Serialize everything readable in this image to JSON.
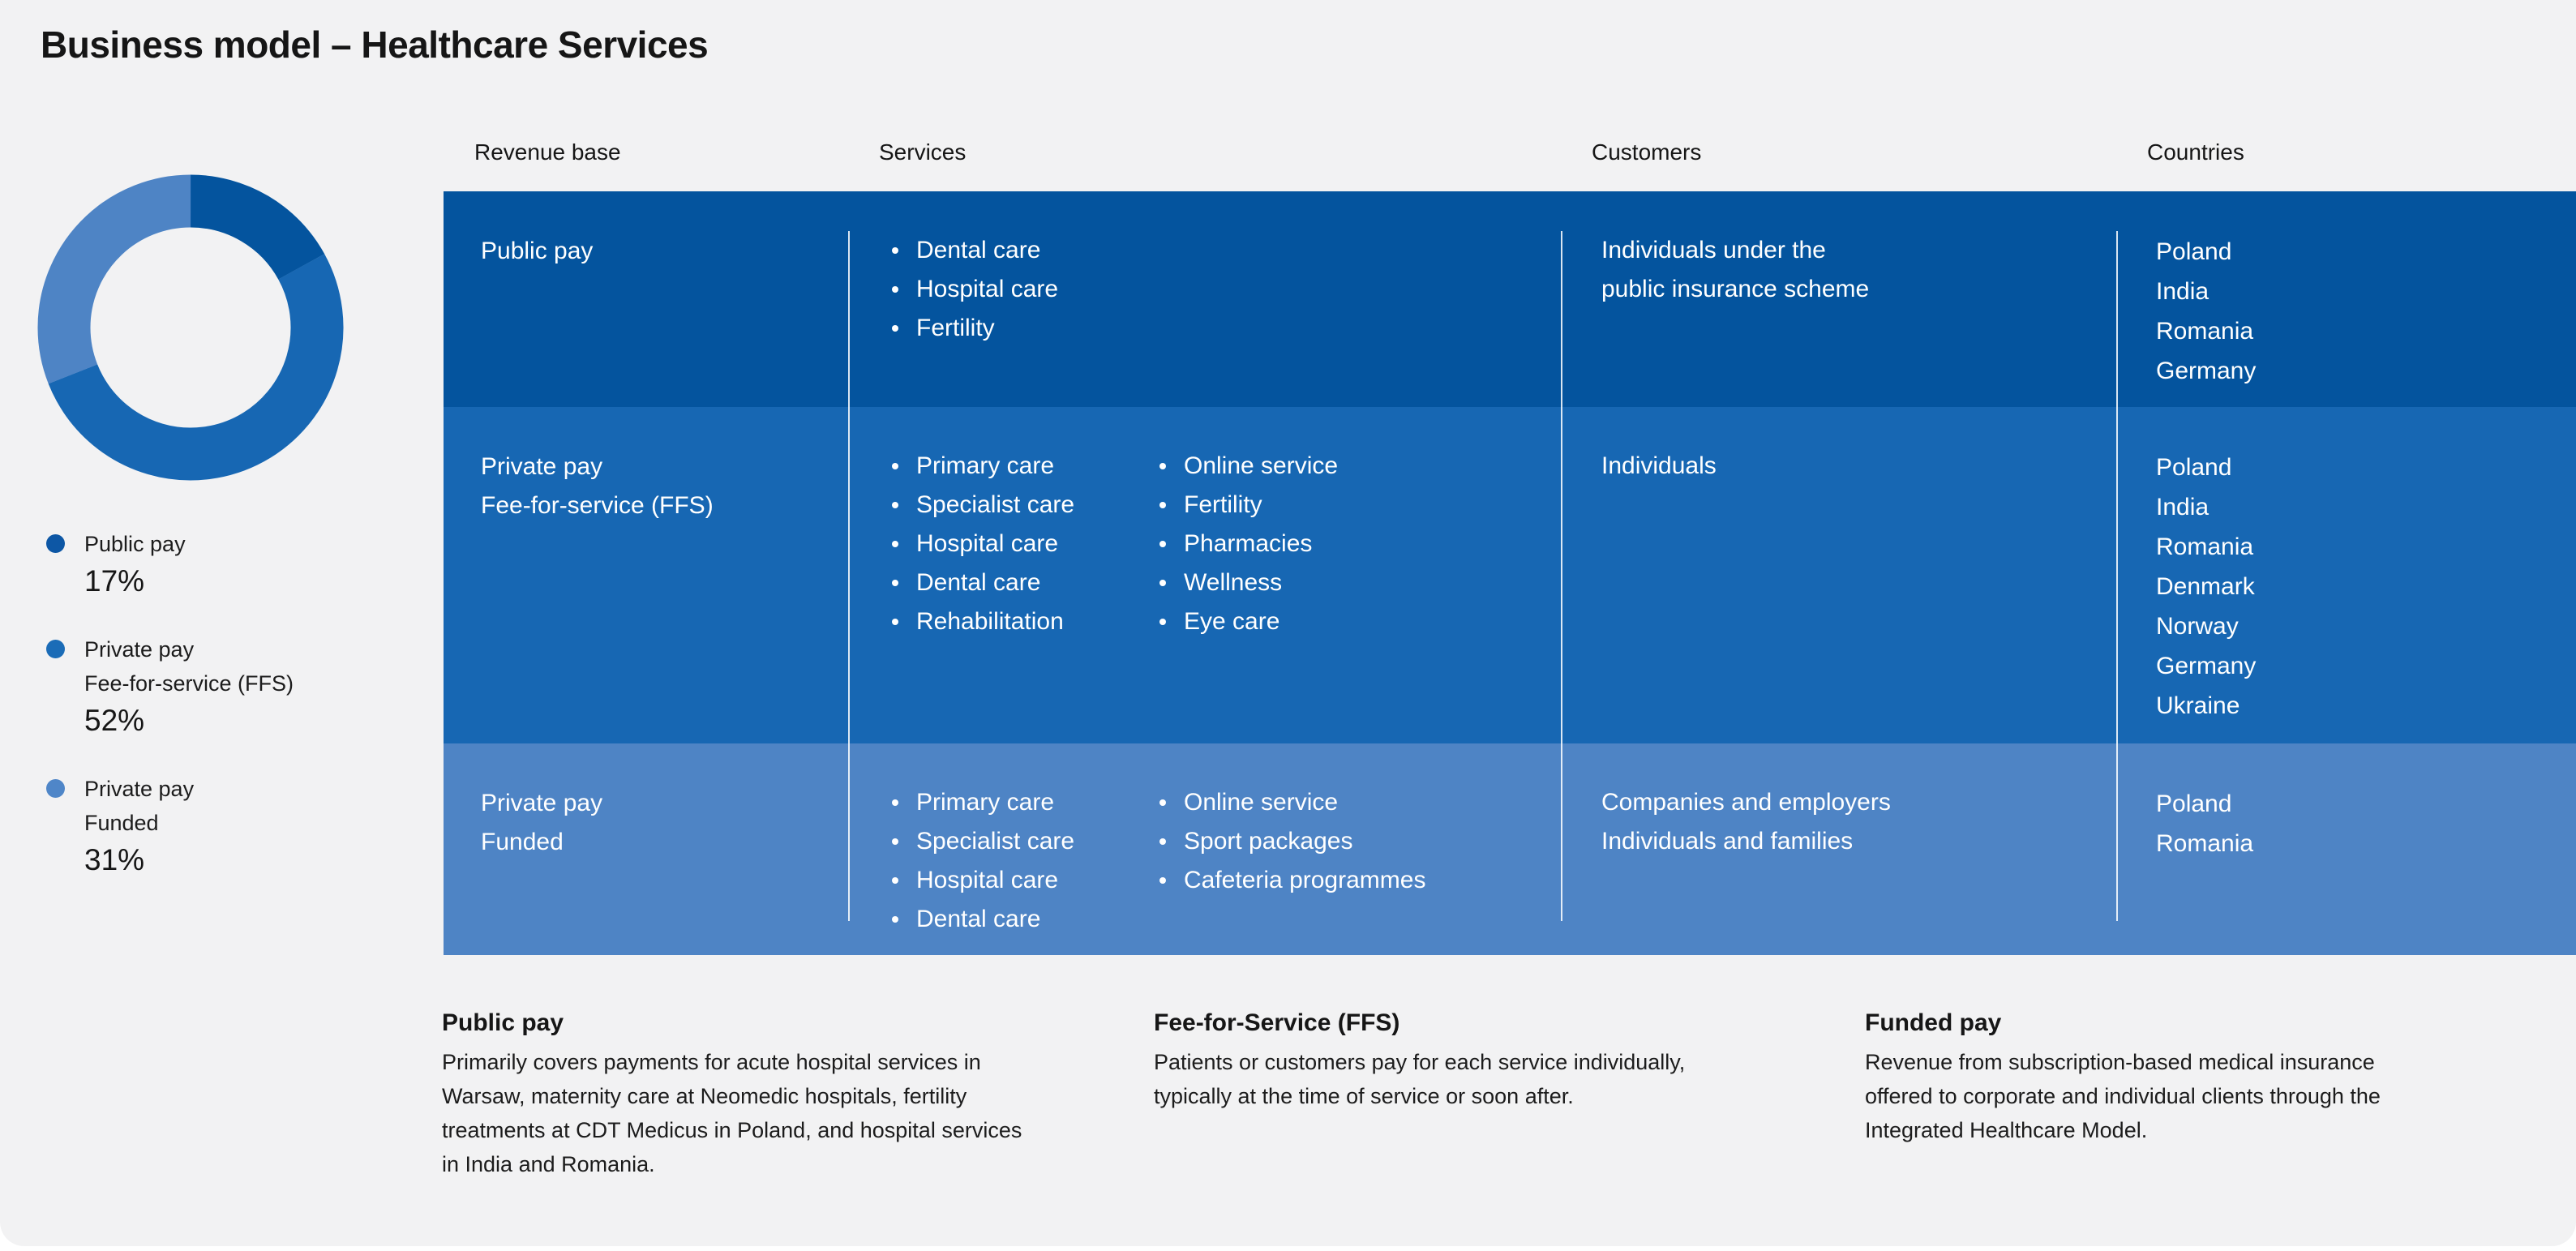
{
  "page": {
    "title": "Business model – Healthcare Services"
  },
  "colors": {
    "page_background": "#ffffff",
    "card_background": "#f2f2f3",
    "row_public_pay": "#04549e",
    "row_private_ffs": "#1767b3",
    "row_private_funded": "#4e84c5",
    "table_text": "#ffffff",
    "heading_text": "#161616"
  },
  "chart_data": [
    {
      "type": "pie",
      "subtype": "donut",
      "title": "",
      "labels": [
        "Public pay",
        "Private pay Fee-for-service (FFS)",
        "Private pay Funded"
      ],
      "values": [
        17,
        52,
        31
      ],
      "unit": "%",
      "colors": [
        "#04549e",
        "#1767b3",
        "#4e84c5"
      ],
      "start_angle_deg": 0,
      "direction": "clockwise",
      "legend_position": "below-left"
    },
    {
      "type": "table",
      "columns": [
        "Revenue base",
        "Services",
        "Customers",
        "Countries"
      ],
      "rows": [
        {
          "revenue": "Public pay",
          "services_a": [
            "Dental care",
            "Hospital care",
            "Fertility"
          ],
          "services_b": [],
          "customers": "Individuals under the\npublic insurance scheme",
          "countries": [
            "Poland",
            "India",
            "Romania",
            "Germany"
          ]
        },
        {
          "revenue": "Private pay\nFee-for-service (FFS)",
          "services_a": [
            "Primary care",
            "Specialist care",
            "Hospital care",
            "Dental care",
            "Rehabilitation"
          ],
          "services_b": [
            "Online service",
            "Fertility",
            "Pharmacies",
            "Wellness",
            "Eye care"
          ],
          "customers": "Individuals",
          "countries": [
            "Poland",
            "India",
            "Romania",
            "Denmark",
            "Norway",
            "Germany",
            "Ukraine"
          ]
        },
        {
          "revenue": "Private pay\nFunded",
          "services_a": [
            "Primary care",
            "Specialist care",
            "Hospital care",
            "Dental care"
          ],
          "services_b": [
            "Online service",
            "Sport packages",
            "Cafeteria programmes"
          ],
          "customers": "Companies and employers\nIndividuals and families",
          "countries": [
            "Poland",
            "Romania"
          ]
        }
      ]
    }
  ],
  "legend": {
    "items": [
      {
        "label": "Public pay",
        "value": "17%",
        "color": "#0d57a5"
      },
      {
        "label": "Private pay\nFee-for-service (FFS)",
        "value": "52%",
        "color": "#1b6cb7"
      },
      {
        "label": "Private pay\nFunded",
        "value": "31%",
        "color": "#4f86c8"
      }
    ]
  },
  "notes": [
    {
      "heading": "Public pay",
      "body": "Primarily covers payments for acute hospital services in\nWarsaw, maternity care at Neomedic hospitals, fertility\ntreatments at CDT Medicus in Poland, and hospital services\nin India and Romania."
    },
    {
      "heading": "Fee-for-Service (FFS)",
      "body": "Patients or customers pay for each service individually,\ntypically at the time of service or soon after."
    },
    {
      "heading": "Funded pay",
      "body": "Revenue from subscription-based medical insurance\noffered to corporate and individual clients through the\nIntegrated Healthcare Model."
    }
  ]
}
